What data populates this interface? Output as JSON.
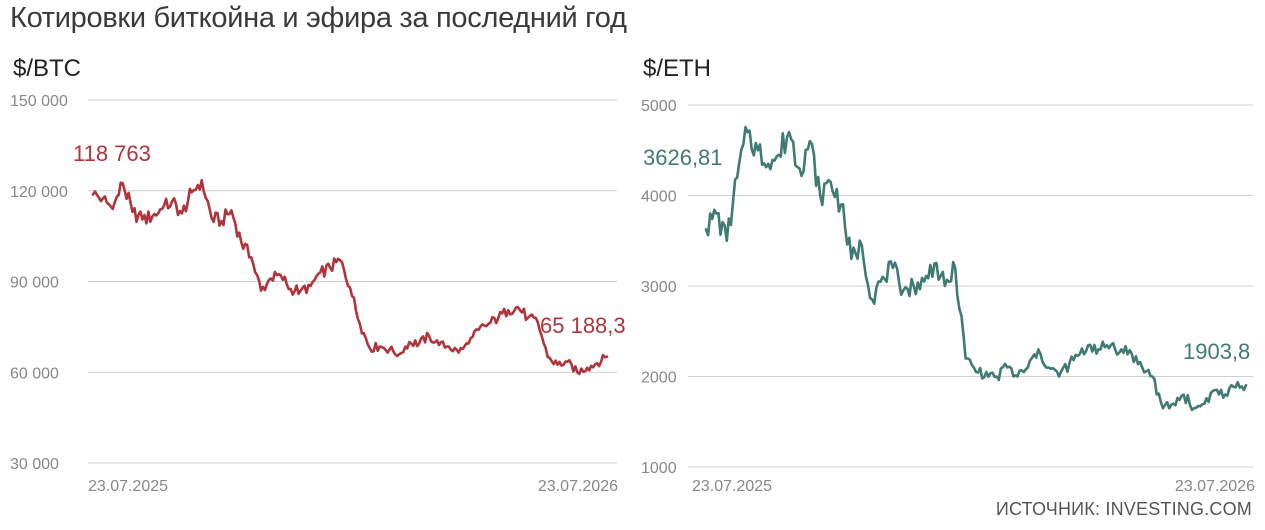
{
  "title": "Котировки биткойна и эфира за последний год",
  "source": "ИСТОЧНИК: INVESTING.COM",
  "chart_data": [
    {
      "type": "line",
      "panel_label": "$/BTC",
      "color": "#b0343c",
      "yticks": [
        "150 000",
        "120 000",
        "90 000",
        "60 000",
        "30 000"
      ],
      "ytick_values": [
        150000,
        120000,
        90000,
        60000,
        30000
      ],
      "ylim": [
        30000,
        150000
      ],
      "xtick_labels": [
        "23.07.2025",
        "23.07.2026"
      ],
      "start_label": "118 763",
      "end_label": "65 188,3",
      "series": [
        {
          "x": [
            "2025-07-23",
            "2025-07-30",
            "2025-08-06",
            "2025-08-13",
            "2025-08-20",
            "2025-08-27",
            "2025-09-03",
            "2025-09-10",
            "2025-09-17",
            "2025-09-24",
            "2025-10-01",
            "2025-10-08",
            "2025-10-15",
            "2025-10-22",
            "2025-10-29",
            "2025-11-05",
            "2025-11-12",
            "2025-11-19",
            "2025-11-26",
            "2025-12-03",
            "2025-12-10",
            "2025-12-17",
            "2025-12-24",
            "2025-12-31",
            "2026-01-07",
            "2026-01-14",
            "2026-01-21",
            "2026-01-28",
            "2026-02-04",
            "2026-02-11",
            "2026-02-18",
            "2026-02-25",
            "2026-03-04",
            "2026-03-11",
            "2026-03-18",
            "2026-03-25",
            "2026-04-01",
            "2026-04-08",
            "2026-04-15",
            "2026-04-22",
            "2026-04-29",
            "2026-05-06",
            "2026-05-13",
            "2026-05-20",
            "2026-05-27",
            "2026-06-03",
            "2026-06-10",
            "2026-06-17",
            "2026-06-24",
            "2026-07-01",
            "2026-07-08",
            "2026-07-15",
            "2026-07-23"
          ],
          "values": [
            118763,
            117500,
            114000,
            122500,
            113000,
            110500,
            111500,
            114000,
            116500,
            112500,
            119500,
            123500,
            111000,
            110000,
            113500,
            103000,
            98000,
            87000,
            91000,
            92000,
            87500,
            87000,
            88500,
            93000,
            94500,
            97000,
            88000,
            76000,
            68000,
            68500,
            67500,
            66000,
            70000,
            69500,
            72000,
            69000,
            68500,
            66500,
            69500,
            74000,
            76000,
            78000,
            80500,
            81500,
            78000,
            76500,
            65000,
            62500,
            63500,
            60000,
            61500,
            63000,
            65188.3
          ]
        }
      ]
    },
    {
      "type": "line",
      "panel_label": "$/ETH",
      "color": "#3f7b73",
      "yticks": [
        "5000",
        "4000",
        "3000",
        "2000",
        "1000"
      ],
      "ytick_values": [
        5000,
        4000,
        3000,
        2000,
        1000
      ],
      "ylim": [
        1000,
        5000
      ],
      "xtick_labels": [
        "23.07.2025",
        "23.07.2026"
      ],
      "start_label": "3626,81",
      "end_label": "1903,8",
      "series": [
        {
          "x": [
            "2025-07-23",
            "2025-07-30",
            "2025-08-06",
            "2025-08-13",
            "2025-08-20",
            "2025-08-27",
            "2025-09-03",
            "2025-09-10",
            "2025-09-17",
            "2025-09-24",
            "2025-10-01",
            "2025-10-08",
            "2025-10-15",
            "2025-10-22",
            "2025-10-29",
            "2025-11-05",
            "2025-11-12",
            "2025-11-19",
            "2025-11-26",
            "2025-12-03",
            "2025-12-10",
            "2025-12-17",
            "2025-12-24",
            "2025-12-31",
            "2026-01-07",
            "2026-01-14",
            "2026-01-21",
            "2026-01-28",
            "2026-02-04",
            "2026-02-11",
            "2026-02-18",
            "2026-02-25",
            "2026-03-04",
            "2026-03-11",
            "2026-03-18",
            "2026-03-25",
            "2026-04-01",
            "2026-04-08",
            "2026-04-15",
            "2026-04-22",
            "2026-04-29",
            "2026-05-06",
            "2026-05-13",
            "2026-05-20",
            "2026-05-27",
            "2026-06-03",
            "2026-06-10",
            "2026-06-17",
            "2026-06-24",
            "2026-07-01",
            "2026-07-08",
            "2026-07-15",
            "2026-07-23"
          ],
          "values": [
            3626.81,
            3800,
            3500,
            4200,
            4700,
            4500,
            4350,
            4450,
            4700,
            4300,
            4600,
            4000,
            4150,
            3900,
            3300,
            3450,
            2850,
            3100,
            3200,
            2950,
            3000,
            3050,
            3250,
            3000,
            3200,
            2200,
            2050,
            2050,
            2000,
            2100,
            2000,
            2100,
            2300,
            2100,
            2000,
            2150,
            2250,
            2350,
            2300,
            2350,
            2300,
            2250,
            2100,
            2000,
            1650,
            1700,
            1800,
            1650,
            1700,
            1850,
            1800,
            1880,
            1903.8
          ]
        }
      ]
    }
  ]
}
